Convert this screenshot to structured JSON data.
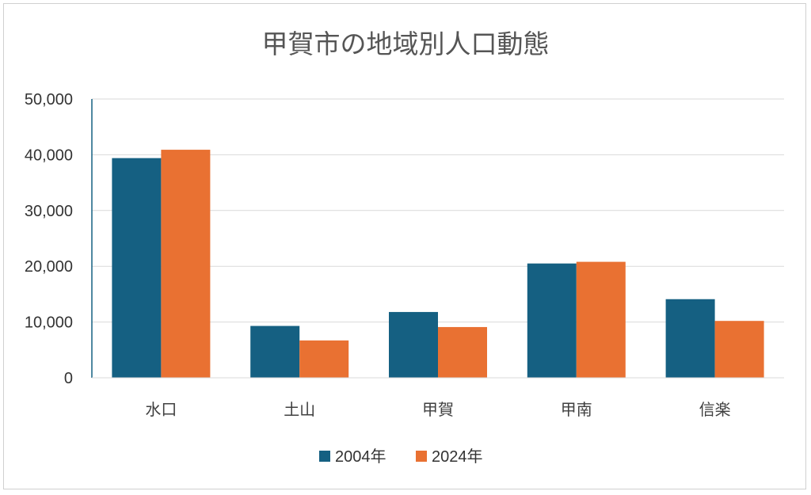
{
  "chart_data": {
    "type": "bar",
    "title": "甲賀市の地域別人口動態",
    "categories": [
      "水口",
      "土山",
      "甲賀",
      "甲南",
      "信楽"
    ],
    "series": [
      {
        "name": "2004年",
        "color": "#156082",
        "values": [
          39400,
          9300,
          11800,
          20500,
          14100
        ]
      },
      {
        "name": "2024年",
        "color": "#E97132",
        "values": [
          40900,
          6700,
          9100,
          20800,
          10200
        ]
      }
    ],
    "ylim": [
      0,
      50000
    ],
    "yticks": [
      "0",
      "10,000",
      "20,000",
      "30,000",
      "40,000",
      "50,000"
    ],
    "ytick_values": [
      0,
      10000,
      20000,
      30000,
      40000,
      50000
    ],
    "grid": true,
    "legend": "bottom"
  }
}
